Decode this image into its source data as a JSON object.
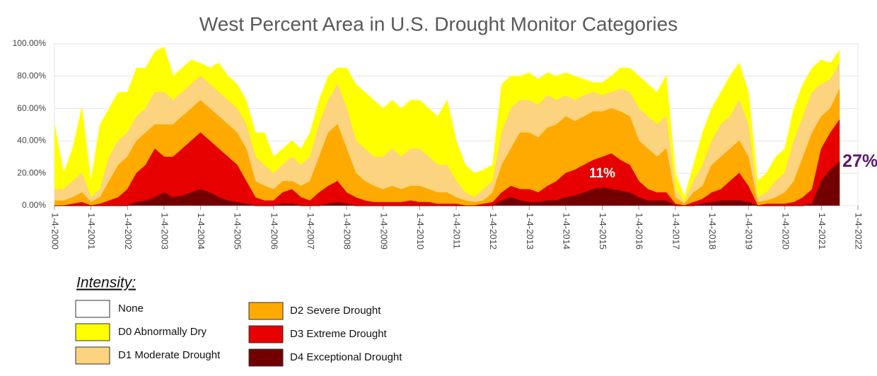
{
  "chart_data": {
    "type": "area",
    "title": "West Percent Area in U.S. Drought Monitor Categories",
    "x": [
      2000,
      2000.25,
      2000.5,
      2000.75,
      2001,
      2001.25,
      2001.5,
      2001.75,
      2002,
      2002.25,
      2002.5,
      2002.75,
      2003,
      2003.25,
      2003.5,
      2003.75,
      2004,
      2004.25,
      2004.5,
      2004.75,
      2005,
      2005.25,
      2005.5,
      2005.75,
      2006,
      2006.25,
      2006.5,
      2006.75,
      2007,
      2007.25,
      2007.5,
      2007.75,
      2008,
      2008.25,
      2008.5,
      2008.75,
      2009,
      2009.25,
      2009.5,
      2009.75,
      2010,
      2010.25,
      2010.5,
      2010.75,
      2011,
      2011.25,
      2011.5,
      2011.75,
      2012,
      2012.25,
      2012.5,
      2012.75,
      2013,
      2013.25,
      2013.5,
      2013.75,
      2014,
      2014.25,
      2014.5,
      2014.75,
      2015,
      2015.25,
      2015.5,
      2015.75,
      2016,
      2016.25,
      2016.5,
      2016.75,
      2017,
      2017.25,
      2017.5,
      2017.75,
      2018,
      2018.25,
      2018.5,
      2018.75,
      2019,
      2019.25,
      2019.5,
      2019.75,
      2020,
      2020.25,
      2020.5,
      2020.75,
      2021,
      2021.25,
      2021.5
    ],
    "series": [
      {
        "name": "D0 Abnormally Dry",
        "color": "#ffff00",
        "values": [
          50,
          20,
          35,
          60,
          15,
          50,
          60,
          70,
          70,
          85,
          85,
          95,
          98,
          80,
          85,
          90,
          88,
          85,
          88,
          80,
          75,
          65,
          45,
          45,
          30,
          35,
          40,
          35,
          45,
          65,
          80,
          85,
          85,
          75,
          70,
          65,
          60,
          65,
          60,
          65,
          65,
          60,
          55,
          65,
          40,
          25,
          20,
          22,
          25,
          75,
          80,
          80,
          82,
          78,
          82,
          80,
          82,
          80,
          78,
          76,
          76,
          80,
          85,
          85,
          80,
          75,
          70,
          80,
          20,
          5,
          25,
          45,
          60,
          70,
          80,
          88,
          70,
          15,
          20,
          30,
          35,
          60,
          75,
          85,
          90,
          88,
          96
        ]
      },
      {
        "name": "D1 Moderate Drought",
        "color": "#fcd37f",
        "values": [
          10,
          10,
          15,
          20,
          5,
          10,
          30,
          40,
          45,
          55,
          60,
          70,
          70,
          65,
          70,
          75,
          80,
          75,
          70,
          65,
          60,
          50,
          30,
          25,
          20,
          25,
          30,
          25,
          30,
          50,
          65,
          75,
          60,
          40,
          35,
          30,
          30,
          35,
          30,
          35,
          35,
          30,
          25,
          25,
          15,
          8,
          5,
          10,
          15,
          45,
          60,
          65,
          65,
          62,
          68,
          65,
          68,
          65,
          68,
          70,
          68,
          70,
          72,
          70,
          60,
          55,
          50,
          55,
          10,
          2,
          15,
          25,
          40,
          50,
          55,
          65,
          50,
          5,
          8,
          15,
          20,
          40,
          55,
          70,
          75,
          78,
          88
        ]
      },
      {
        "name": "D2 Severe Drought",
        "color": "#ffaa00",
        "values": [
          3,
          3,
          5,
          8,
          2,
          5,
          15,
          25,
          30,
          40,
          45,
          50,
          50,
          50,
          55,
          60,
          65,
          60,
          55,
          50,
          45,
          35,
          15,
          12,
          10,
          15,
          15,
          12,
          15,
          30,
          45,
          50,
          35,
          20,
          15,
          12,
          10,
          12,
          10,
          12,
          12,
          10,
          8,
          8,
          5,
          3,
          2,
          3,
          8,
          25,
          35,
          45,
          45,
          42,
          48,
          50,
          55,
          52,
          55,
          58,
          58,
          60,
          58,
          55,
          40,
          35,
          30,
          35,
          5,
          1,
          8,
          12,
          25,
          30,
          35,
          40,
          30,
          2,
          3,
          5,
          8,
          15,
          30,
          45,
          55,
          60,
          72
        ]
      },
      {
        "name": "D3 Extreme Drought",
        "color": "#e60000",
        "values": [
          0,
          0,
          1,
          2,
          0,
          1,
          3,
          5,
          10,
          20,
          25,
          35,
          30,
          30,
          35,
          40,
          45,
          40,
          35,
          30,
          25,
          15,
          5,
          3,
          3,
          8,
          10,
          5,
          3,
          8,
          12,
          15,
          8,
          5,
          3,
          2,
          2,
          2,
          2,
          3,
          2,
          2,
          1,
          1,
          1,
          0,
          0,
          1,
          2,
          8,
          12,
          10,
          10,
          8,
          12,
          15,
          20,
          22,
          25,
          28,
          30,
          32,
          28,
          25,
          15,
          10,
          8,
          8,
          1,
          0,
          2,
          4,
          8,
          10,
          15,
          20,
          12,
          0,
          1,
          1,
          1,
          2,
          5,
          10,
          35,
          45,
          53
        ]
      },
      {
        "name": "D4 Exceptional Drought",
        "color": "#730000",
        "values": [
          0,
          0,
          0,
          0,
          0,
          0,
          0,
          0,
          0,
          2,
          3,
          5,
          8,
          5,
          6,
          8,
          10,
          8,
          5,
          3,
          2,
          1,
          0,
          0,
          0,
          1,
          1,
          0,
          0,
          0,
          1,
          2,
          1,
          0,
          0,
          0,
          0,
          0,
          0,
          0,
          0,
          0,
          0,
          0,
          0,
          0,
          0,
          0,
          0,
          3,
          5,
          3,
          2,
          2,
          3,
          3,
          5,
          6,
          8,
          10,
          11,
          10,
          9,
          8,
          5,
          3,
          3,
          3,
          0,
          0,
          0,
          1,
          2,
          3,
          3,
          3,
          2,
          0,
          0,
          0,
          0,
          0,
          0,
          1,
          15,
          22,
          27
        ],
        "value_labels": [
          null,
          null,
          null,
          null,
          null,
          null,
          null,
          null,
          null,
          null,
          null,
          null,
          null,
          null,
          null,
          null,
          null,
          null,
          null,
          null,
          null,
          null,
          null,
          null,
          null,
          null,
          null,
          null,
          null,
          null,
          null,
          null,
          null,
          null,
          null,
          null,
          null,
          null,
          null,
          null,
          null,
          null,
          null,
          null,
          null,
          null,
          null,
          null,
          null,
          null,
          null,
          null,
          null,
          null,
          null,
          null,
          null,
          null,
          null,
          null,
          "11%",
          null,
          null,
          null,
          null,
          null,
          null,
          null,
          null,
          null,
          null,
          null,
          null,
          null,
          null,
          null,
          null,
          null,
          null,
          null,
          null,
          null,
          null,
          null,
          null,
          null,
          "27%"
        ]
      }
    ],
    "xlim": [
      2000,
      2022
    ],
    "xticks": [
      {
        "value": 2000,
        "label": "1-4-2000"
      },
      {
        "value": 2001,
        "label": "1-4-2001"
      },
      {
        "value": 2002,
        "label": "1-4-2002"
      },
      {
        "value": 2003,
        "label": "1-4-2003"
      },
      {
        "value": 2004,
        "label": "1-4-2004"
      },
      {
        "value": 2005,
        "label": "1-4-2005"
      },
      {
        "value": 2006,
        "label": "1-4-2006"
      },
      {
        "value": 2007,
        "label": "1-4-2007"
      },
      {
        "value": 2008,
        "label": "1-4-2008"
      },
      {
        "value": 2009,
        "label": "1-4-2009"
      },
      {
        "value": 2010,
        "label": "1-4-2010"
      },
      {
        "value": 2011,
        "label": "1-4-2011"
      },
      {
        "value": 2012,
        "label": "1-4-2012"
      },
      {
        "value": 2013,
        "label": "1-4-2013"
      },
      {
        "value": 2014,
        "label": "1-4-2014"
      },
      {
        "value": 2015,
        "label": "1-4-2015"
      },
      {
        "value": 2016,
        "label": "1-4-2016"
      },
      {
        "value": 2017,
        "label": "1-4-2017"
      },
      {
        "value": 2018,
        "label": "1-4-2018"
      },
      {
        "value": 2019,
        "label": "1-4-2019"
      },
      {
        "value": 2020,
        "label": "1-4-2020"
      },
      {
        "value": 2021,
        "label": "1-4-2021"
      },
      {
        "value": 2022,
        "label": "1-4-2022"
      }
    ],
    "ylim": [
      0,
      100
    ],
    "yticks": [
      {
        "value": 0,
        "label": "0.00%"
      },
      {
        "value": 20,
        "label": "20.00%"
      },
      {
        "value": 40,
        "label": "40.00%"
      },
      {
        "value": 60,
        "label": "60.00%"
      },
      {
        "value": 80,
        "label": "80.00%"
      },
      {
        "value": 100,
        "label": "100.00%"
      }
    ],
    "grid": true,
    "legend": {
      "title": "Intensity:",
      "extra": [
        {
          "name": "None",
          "color": "#ffffff"
        }
      ]
    }
  }
}
